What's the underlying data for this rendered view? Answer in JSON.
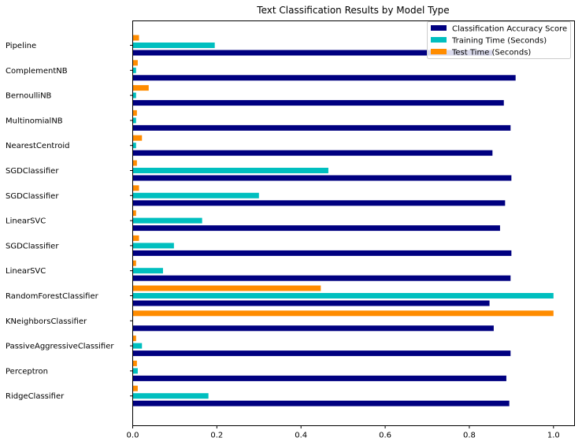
{
  "chart_data": {
    "type": "bar",
    "orientation": "horizontal",
    "title": "Text Classification Results by Model Type",
    "xlabel": "",
    "ylabel": "",
    "xlim": [
      0,
      1.05
    ],
    "x_ticks": [
      "0.0",
      "0.2",
      "0.4",
      "0.6",
      "0.8",
      "1.0"
    ],
    "grid": false,
    "legend_position": "top-right",
    "categories": [
      "Pipeline",
      "ComplementNB",
      "BernoulliNB",
      "MultinomialNB",
      "NearestCentroid",
      "SGDClassifier",
      "SGDClassifier",
      "LinearSVC",
      "SGDClassifier",
      "LinearSVC",
      "RandomForestClassifier",
      "KNeighborsClassifier",
      "PassiveAggressiveClassifier",
      "Perceptron",
      "RidgeClassifier"
    ],
    "series": [
      {
        "name": "Classification Accuracy Score",
        "color": "#000080",
        "values": [
          0.855,
          0.91,
          0.882,
          0.898,
          0.855,
          0.9,
          0.885,
          0.873,
          0.9,
          0.898,
          0.848,
          0.858,
          0.898,
          0.888,
          0.895
        ]
      },
      {
        "name": "Training Time (Seconds)",
        "color": "#00bfbf",
        "values": [
          0.195,
          0.008,
          0.008,
          0.008,
          0.008,
          0.465,
          0.3,
          0.165,
          0.098,
          0.072,
          1.0,
          0.0,
          0.022,
          0.012,
          0.18
        ]
      },
      {
        "name": "Test Time (Seconds)",
        "color": "#ff8c00",
        "values": [
          0.015,
          0.012,
          0.038,
          0.01,
          0.022,
          0.01,
          0.015,
          0.008,
          0.015,
          0.008,
          0.447,
          1.0,
          0.008,
          0.01,
          0.012
        ]
      }
    ]
  }
}
